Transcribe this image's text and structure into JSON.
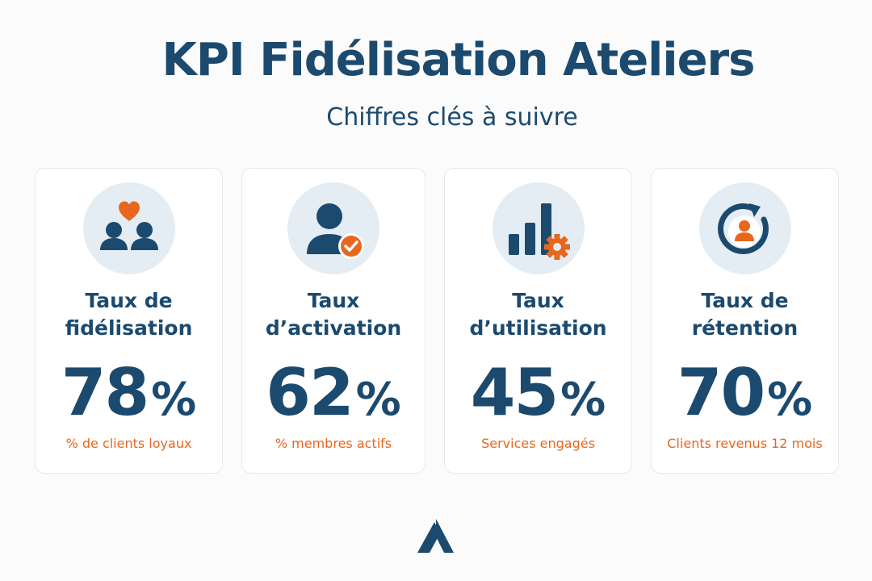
{
  "header": {
    "title": "KPI Fidélisation Ateliers",
    "subtitle": "Chiffres clés à suivre"
  },
  "colors": {
    "primary": "#1c4a6e",
    "accent": "#e8671e",
    "icon_background": "#e4edf3"
  },
  "cards": [
    {
      "icon": "two-users-heart-icon",
      "label_line1": "Taux de",
      "label_line2": "fidélisation",
      "value": "78",
      "unit": "%",
      "caption": "% de clients loyaux"
    },
    {
      "icon": "user-check-icon",
      "label_line1": "Taux",
      "label_line2": "d’activation",
      "value": "62",
      "unit": "%",
      "caption": "% membres actifs"
    },
    {
      "icon": "bar-chart-gear-icon",
      "label_line1": "Taux",
      "label_line2": "d’utilisation",
      "value": "45",
      "unit": "%",
      "caption": "Services engagés"
    },
    {
      "icon": "user-refresh-icon",
      "label_line1": "Taux de",
      "label_line2": "rétention",
      "value": "70",
      "unit": "%",
      "caption": "Clients revenus 12 mois"
    }
  ],
  "footer": {
    "logo": "brand-logo-icon"
  }
}
